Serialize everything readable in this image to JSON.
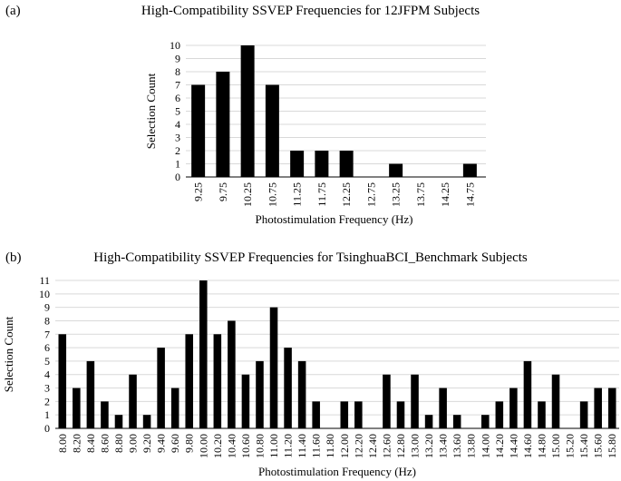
{
  "charts": {
    "a": {
      "panel_label": "(a)"
    },
    "b": {
      "panel_label": "(b)"
    }
  },
  "chart_data": [
    {
      "type": "bar",
      "title": "High-Compatibility SSVEP Frequencies for 12JFPM Subjects",
      "xlabel": "Photostimulation Frequency (Hz)",
      "ylabel": "Selection Count",
      "ylim": [
        0,
        10
      ],
      "yticks": [
        0,
        1,
        2,
        3,
        4,
        5,
        6,
        7,
        8,
        9,
        10
      ],
      "grid": true,
      "bar_color": "#000000",
      "grid_color": "#d9d9d9",
      "categories": [
        "9.25",
        "9.75",
        "10.25",
        "10.75",
        "11.25",
        "11.75",
        "12.25",
        "12.75",
        "13.25",
        "13.75",
        "14.25",
        "14.75"
      ],
      "values": [
        7,
        8,
        10,
        7,
        2,
        2,
        2,
        0,
        1,
        0,
        0,
        1
      ]
    },
    {
      "type": "bar",
      "title": "High-Compatibility SSVEP Frequencies for TsinghuaBCI_Benchmark Subjects",
      "xlabel": "Photostimulation Frequency (Hz)",
      "ylabel": "Selection Count",
      "ylim": [
        0,
        11
      ],
      "yticks": [
        0,
        1,
        2,
        3,
        4,
        5,
        6,
        7,
        8,
        9,
        10,
        11
      ],
      "grid": true,
      "bar_color": "#000000",
      "grid_color": "#d9d9d9",
      "categories": [
        "8.00",
        "8.20",
        "8.40",
        "8.60",
        "8.80",
        "9.00",
        "9.20",
        "9.40",
        "9.60",
        "9.80",
        "10.00",
        "10.20",
        "10.40",
        "10.60",
        "10.80",
        "11.00",
        "11.20",
        "11.40",
        "11.60",
        "11.80",
        "12.00",
        "12.20",
        "12.40",
        "12.60",
        "12.80",
        "13.00",
        "13.20",
        "13.40",
        "13.60",
        "13.80",
        "14.00",
        "14.20",
        "14.40",
        "14.60",
        "14.80",
        "15.00",
        "15.20",
        "15.40",
        "15.60",
        "15.80"
      ],
      "values": [
        7,
        3,
        5,
        2,
        1,
        4,
        1,
        6,
        3,
        7,
        11,
        7,
        8,
        4,
        5,
        9,
        6,
        5,
        2,
        0,
        2,
        2,
        0,
        4,
        2,
        4,
        1,
        3,
        1,
        0,
        1,
        2,
        3,
        5,
        2,
        4,
        0,
        2,
        3,
        3
      ]
    }
  ]
}
